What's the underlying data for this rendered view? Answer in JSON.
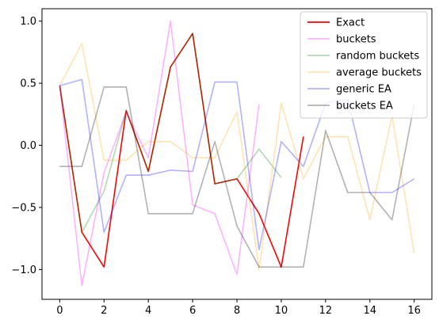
{
  "chart_data": {
    "type": "line",
    "title": "",
    "xlabel": "",
    "ylabel": "",
    "xlim": [
      -0.8,
      16.8
    ],
    "ylim": [
      -1.24,
      1.1
    ],
    "grid": false,
    "legend_position": "top-right",
    "x_ticks": [
      0,
      2,
      4,
      6,
      8,
      10,
      12,
      14,
      16
    ],
    "x_tick_labels": [
      "0",
      "2",
      "4",
      "6",
      "8",
      "10",
      "12",
      "14",
      "16"
    ],
    "y_ticks": [
      -1.0,
      -0.5,
      0.0,
      0.5,
      1.0
    ],
    "y_tick_labels": [
      "−1.0",
      "−0.5",
      "0.0",
      "0.5",
      "1.0"
    ],
    "series": [
      {
        "name": "Exact",
        "color": "#ff0000",
        "opacity": 1.0,
        "x": [
          0,
          1,
          2,
          3,
          4,
          5,
          6,
          7,
          8,
          9,
          10,
          11
        ],
        "values": [
          0.48,
          -0.7,
          -0.98,
          0.28,
          -0.21,
          0.63,
          0.9,
          -0.31,
          -0.27,
          -0.55,
          -0.98,
          0.07
        ]
      },
      {
        "name": "buckets",
        "color": "#ff00ff",
        "opacity": 0.3,
        "x": [
          0,
          1,
          2,
          3,
          4,
          5,
          6,
          7,
          8,
          9
        ],
        "values": [
          0.48,
          -1.13,
          -0.22,
          0.27,
          -0.1,
          1.0,
          -0.48,
          -0.55,
          -1.04,
          0.33
        ]
      },
      {
        "name": "random buckets",
        "color": "#008000",
        "opacity": 0.3,
        "x": [
          0,
          1,
          2,
          3,
          4,
          5,
          6,
          7,
          8,
          9,
          10
        ],
        "values": [
          0.48,
          -0.7,
          -0.37,
          0.28,
          -0.21,
          0.63,
          0.9,
          -0.31,
          -0.27,
          -0.03,
          -0.26
        ]
      },
      {
        "name": "average buckets",
        "color": "#ffa500",
        "opacity": 0.3,
        "x": [
          0,
          1,
          2,
          3,
          4,
          5,
          6,
          7,
          8,
          9,
          10,
          11,
          12,
          13,
          14,
          15,
          16
        ],
        "values": [
          0.48,
          0.82,
          -0.12,
          -0.12,
          0.03,
          0.03,
          -0.1,
          -0.1,
          0.27,
          -1.0,
          0.34,
          -0.27,
          0.07,
          0.07,
          -0.6,
          0.24,
          -0.87
        ]
      },
      {
        "name": "generic EA",
        "color": "#0000ff",
        "opacity": 0.3,
        "x": [
          0,
          1,
          2,
          3,
          4,
          5,
          6,
          7,
          8,
          9,
          10,
          11,
          12,
          13,
          14,
          15,
          16
        ],
        "values": [
          0.48,
          0.53,
          -0.7,
          -0.24,
          -0.24,
          -0.2,
          -0.21,
          0.51,
          0.51,
          -0.84,
          0.03,
          -0.17,
          0.34,
          0.37,
          -0.38,
          -0.38,
          -0.27
        ]
      },
      {
        "name": "buckets EA",
        "color": "#000000",
        "opacity": 0.3,
        "x": [
          0,
          1,
          2,
          3,
          4,
          5,
          6,
          7,
          8,
          9,
          10,
          11,
          12,
          13,
          14,
          15,
          16
        ],
        "values": [
          -0.17,
          -0.17,
          0.47,
          0.47,
          -0.55,
          -0.55,
          -0.55,
          0.03,
          -0.65,
          -0.98,
          -0.98,
          -0.98,
          0.12,
          -0.38,
          -0.38,
          -0.6,
          0.33
        ]
      }
    ]
  }
}
